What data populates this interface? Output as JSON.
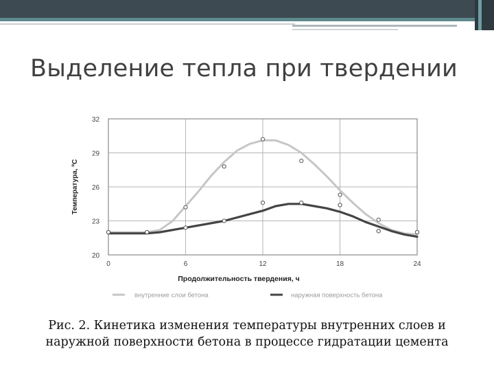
{
  "slide": {
    "title": "Выделение тепла при твердении",
    "caption_line1": "Рис. 2. Кинетика изменения температуры внутренних слоев и",
    "caption_line2": "наружной поверхности бетона в процессе гидратации цемента",
    "colors": {
      "title_text": "#404040",
      "header_band": "#3d4a52",
      "header_accent": "#5e8a8e"
    }
  },
  "chart_data": {
    "type": "line",
    "xlabel": "Продолжительность твердения, ч",
    "ylabel": "Температура, ºС",
    "xlim": [
      0,
      24
    ],
    "ylim": [
      20,
      32
    ],
    "xticks": [
      0,
      6,
      12,
      18,
      24
    ],
    "yticks": [
      20,
      23,
      26,
      29,
      32
    ],
    "grid": true,
    "legend_position": "bottom",
    "series": [
      {
        "name": "внутренние слои бетона",
        "color": "#c6c6c6",
        "curve": [
          [
            0,
            22
          ],
          [
            3,
            22
          ],
          [
            4,
            22.2
          ],
          [
            5,
            23
          ],
          [
            6,
            24.3
          ],
          [
            7,
            25.6
          ],
          [
            8,
            27
          ],
          [
            9,
            28.2
          ],
          [
            10,
            29.2
          ],
          [
            11,
            29.8
          ],
          [
            12,
            30.1
          ],
          [
            13,
            30.1
          ],
          [
            14,
            29.7
          ],
          [
            15,
            29
          ],
          [
            16,
            28
          ],
          [
            17,
            26.9
          ],
          [
            18,
            25.7
          ],
          [
            19,
            24.6
          ],
          [
            20,
            23.6
          ],
          [
            21,
            22.8
          ],
          [
            22,
            22.2
          ],
          [
            23,
            21.9
          ],
          [
            24,
            21.8
          ]
        ],
        "points": [
          [
            0,
            22
          ],
          [
            3,
            22
          ],
          [
            6,
            24.2
          ],
          [
            9,
            27.8
          ],
          [
            12,
            30.2
          ],
          [
            15,
            28.3
          ],
          [
            18,
            25.3
          ],
          [
            21,
            23.1
          ],
          [
            24,
            22
          ]
        ],
        "points2": [
          [
            18,
            24.4
          ],
          [
            21,
            22.1
          ]
        ]
      },
      {
        "name": "наружная поверхность бетона",
        "color": "#444444",
        "curve": [
          [
            0,
            21.9
          ],
          [
            3,
            21.9
          ],
          [
            4,
            22
          ],
          [
            6,
            22.4
          ],
          [
            9,
            23
          ],
          [
            12,
            23.9
          ],
          [
            13,
            24.3
          ],
          [
            14,
            24.5
          ],
          [
            15,
            24.5
          ],
          [
            16,
            24.3
          ],
          [
            17,
            24.1
          ],
          [
            18,
            23.8
          ],
          [
            19,
            23.4
          ],
          [
            20,
            22.9
          ],
          [
            21,
            22.5
          ],
          [
            22,
            22.1
          ],
          [
            23,
            21.8
          ],
          [
            24,
            21.6
          ]
        ],
        "points": [
          [
            0,
            22
          ],
          [
            3,
            22
          ],
          [
            6,
            22.4
          ],
          [
            9,
            23
          ],
          [
            12,
            24.6
          ],
          [
            15,
            24.6
          ],
          [
            18,
            24.4
          ],
          [
            21,
            22.1
          ],
          [
            24,
            22
          ]
        ]
      }
    ]
  }
}
